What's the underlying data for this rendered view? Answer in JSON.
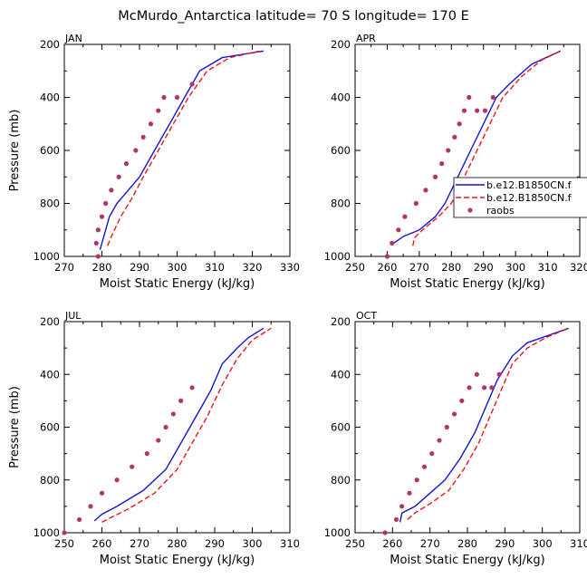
{
  "figure": {
    "title": "McMurdo_Antarctica  latitude= 70 S longitude= 170 E",
    "xlabel": "Moist Static Energy (kJ/kg)",
    "ylabel": "Pressure (mb)"
  },
  "legend": {
    "entries": [
      {
        "label": "b.e12.B1850CN.f",
        "color": "#1414d2",
        "style": "solid"
      },
      {
        "label": "b.e12.B1850CN.f",
        "color": "#e8141e",
        "style": "dashed"
      },
      {
        "label": "raobs",
        "color": "#b4326e",
        "style": "dots"
      }
    ]
  },
  "colors": {
    "model1": "#1414d2",
    "model2": "#e8141e",
    "raobs": "#b4326e"
  },
  "chart_data": [
    {
      "type": "line",
      "panel": "JAN",
      "xlabel": "Moist Static Energy (kJ/kg)",
      "ylabel": "Pressure (mb)",
      "xlim": [
        270,
        330
      ],
      "ylim": [
        1000,
        200
      ],
      "xticks": [
        270,
        280,
        290,
        300,
        310,
        320,
        330
      ],
      "yticks": [
        200,
        400,
        600,
        800,
        1000
      ],
      "series": [
        {
          "key": "model1",
          "x": [
            279.5,
            280.5,
            282,
            284,
            287,
            290,
            294,
            298,
            302,
            306,
            312,
            323
          ],
          "y": [
            975,
            925,
            850,
            800,
            750,
            700,
            600,
            500,
            400,
            300,
            250,
            225
          ]
        },
        {
          "key": "model2",
          "x": [
            281.5,
            282.5,
            285,
            288,
            291,
            295,
            299,
            303,
            308,
            314,
            322
          ],
          "y": [
            960,
            925,
            850,
            780,
            700,
            600,
            500,
            400,
            300,
            250,
            225
          ]
        },
        {
          "key": "raobs",
          "x": [
            279,
            278.5,
            279,
            280,
            281,
            282.5,
            284.5,
            286.5,
            289,
            291,
            293,
            295,
            296.5,
            300,
            304
          ],
          "y": [
            1000,
            950,
            900,
            850,
            800,
            750,
            700,
            650,
            600,
            550,
            500,
            450,
            400,
            400,
            350
          ]
        }
      ]
    },
    {
      "type": "line",
      "panel": "APR",
      "xlabel": "Moist Static Energy (kJ/kg)",
      "ylabel": "",
      "xlim": [
        250,
        320
      ],
      "ylim": [
        1000,
        200
      ],
      "xticks": [
        250,
        260,
        270,
        280,
        290,
        300,
        310,
        320
      ],
      "yticks": [
        200,
        400,
        600,
        800,
        1000
      ],
      "series": [
        {
          "key": "model1",
          "x": [
            262,
            265,
            270,
            275,
            278,
            282,
            286,
            290,
            294,
            298,
            305,
            314
          ],
          "y": [
            950,
            925,
            900,
            850,
            800,
            700,
            600,
            500,
            400,
            350,
            275,
            225
          ]
        },
        {
          "key": "model2",
          "x": [
            268,
            268.5,
            271,
            276,
            280,
            284,
            288,
            292,
            296,
            302,
            308,
            314
          ],
          "y": [
            960,
            930,
            900,
            850,
            800,
            700,
            600,
            500,
            400,
            320,
            260,
            225
          ]
        },
        {
          "key": "raobs",
          "x": [
            260,
            261.5,
            263.5,
            265.5,
            269,
            272,
            275,
            277,
            279,
            281,
            282.5,
            284,
            285.5,
            288,
            290.5,
            293
          ],
          "y": [
            1000,
            950,
            900,
            850,
            800,
            750,
            700,
            650,
            600,
            550,
            500,
            450,
            400,
            450,
            450,
            400
          ]
        }
      ]
    },
    {
      "type": "line",
      "panel": "JUL",
      "xlabel": "Moist Static Energy (kJ/kg)",
      "ylabel": "Pressure (mb)",
      "xlim": [
        250,
        310
      ],
      "ylim": [
        1000,
        200
      ],
      "xticks": [
        250,
        260,
        270,
        280,
        290,
        300,
        310
      ],
      "yticks": [
        200,
        400,
        600,
        800,
        1000
      ],
      "series": [
        {
          "key": "model1",
          "x": [
            258,
            260,
            264,
            271,
            277,
            281,
            285,
            289,
            292,
            296,
            299,
            303
          ],
          "y": [
            955,
            930,
            900,
            840,
            760,
            660,
            560,
            460,
            360,
            300,
            260,
            225
          ]
        },
        {
          "key": "model2",
          "x": [
            260,
            262,
            267,
            274,
            280,
            284,
            288,
            292,
            296,
            300,
            305
          ],
          "y": [
            960,
            945,
            910,
            850,
            760,
            660,
            560,
            440,
            340,
            270,
            225
          ]
        },
        {
          "key": "raobs",
          "x": [
            250,
            254,
            257,
            260,
            264,
            268,
            272,
            275,
            277,
            279,
            281,
            284
          ],
          "y": [
            1000,
            950,
            900,
            850,
            800,
            750,
            700,
            650,
            600,
            550,
            500,
            450
          ]
        }
      ]
    },
    {
      "type": "line",
      "panel": "OCT",
      "xlabel": "Moist Static Energy (kJ/kg)",
      "ylabel": "",
      "xlim": [
        250,
        310
      ],
      "ylim": [
        1000,
        200
      ],
      "xticks": [
        250,
        260,
        270,
        280,
        290,
        300,
        310
      ],
      "yticks": [
        200,
        400,
        600,
        800,
        1000
      ],
      "series": [
        {
          "key": "model1",
          "x": [
            262,
            262.5,
            266,
            270,
            274,
            278,
            282,
            285,
            288,
            292,
            296,
            302,
            307
          ],
          "y": [
            960,
            925,
            900,
            850,
            800,
            720,
            620,
            520,
            420,
            330,
            280,
            250,
            225
          ]
        },
        {
          "key": "model2",
          "x": [
            264,
            266,
            270,
            275,
            279,
            283,
            286,
            289,
            292,
            296,
            301,
            307
          ],
          "y": [
            950,
            925,
            890,
            840,
            760,
            660,
            560,
            460,
            360,
            300,
            260,
            225
          ]
        },
        {
          "key": "raobs",
          "x": [
            258,
            261,
            262.5,
            264.5,
            266.5,
            268.5,
            270.5,
            272.5,
            274.5,
            276.5,
            278.5,
            280.5,
            282.5,
            284.5,
            286.5,
            288.5
          ],
          "y": [
            1000,
            950,
            900,
            850,
            800,
            750,
            700,
            650,
            600,
            550,
            500,
            450,
            400,
            450,
            450,
            400
          ]
        }
      ]
    }
  ]
}
